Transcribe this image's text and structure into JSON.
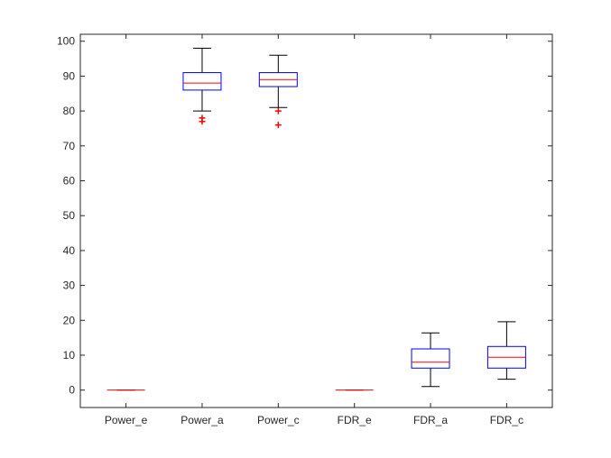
{
  "chart_data": {
    "type": "box",
    "categories": [
      "Power_e",
      "Power_a",
      "Power_c",
      "FDR_e",
      "FDR_a",
      "FDR_c"
    ],
    "ylim": [
      -5,
      102
    ],
    "yticks": [
      0,
      10,
      20,
      30,
      40,
      50,
      60,
      70,
      80,
      90,
      100
    ],
    "ytick_labels": [
      "0",
      "10",
      "20",
      "30",
      "40",
      "50",
      "60",
      "70",
      "80",
      "90",
      "100"
    ],
    "grid": false,
    "boxes": [
      {
        "category": "Power_e",
        "whisker_low": 0,
        "q1": 0,
        "median": 0,
        "q3": 0,
        "whisker_high": 0,
        "outliers": []
      },
      {
        "category": "Power_a",
        "whisker_low": 80,
        "q1": 86,
        "median": 88,
        "q3": 91,
        "whisker_high": 98,
        "outliers": [
          77,
          78
        ]
      },
      {
        "category": "Power_c",
        "whisker_low": 81,
        "q1": 87,
        "median": 89,
        "q3": 91,
        "whisker_high": 96,
        "outliers": [
          76,
          80
        ]
      },
      {
        "category": "FDR_e",
        "whisker_low": 0,
        "q1": 0,
        "median": 0,
        "q3": 0,
        "whisker_high": 0,
        "outliers": []
      },
      {
        "category": "FDR_a",
        "whisker_low": 1,
        "q1": 6.3,
        "median": 8,
        "q3": 11.8,
        "whisker_high": 16.4,
        "outliers": []
      },
      {
        "category": "FDR_c",
        "whisker_low": 3.1,
        "q1": 6.3,
        "median": 9.4,
        "q3": 12.5,
        "whisker_high": 19.6,
        "outliers": []
      }
    ],
    "colors": {
      "box": "#0000ff",
      "median": "#ff0000",
      "whisker": "#000000",
      "outlier": "#ff0000",
      "axis": "#262626"
    }
  }
}
